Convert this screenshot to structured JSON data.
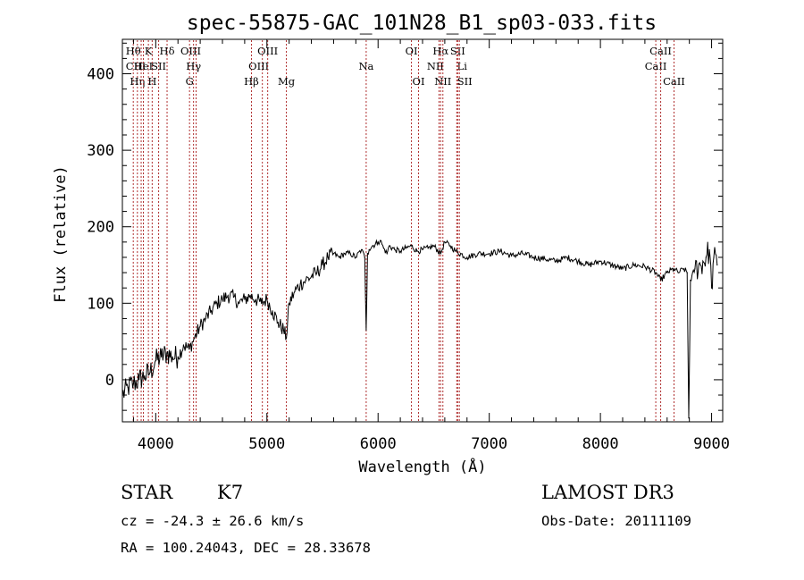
{
  "chart_data": {
    "type": "line",
    "title": "spec-55875-GAC_101N28_B1_sp03-033.fits",
    "xlabel": "Wavelength (Å)",
    "ylabel": "Flux (relative)",
    "xlim": [
      3700,
      9100
    ],
    "ylim": [
      -55,
      445
    ],
    "x_ticks": [
      4000,
      5000,
      6000,
      7000,
      8000,
      9000
    ],
    "x_tick_labels": [
      "4000",
      "5000",
      "6000",
      "7000",
      "8000",
      "9000"
    ],
    "y_ticks": [
      0,
      100,
      200,
      300,
      400
    ],
    "y_tick_labels": [
      "0",
      "100",
      "200",
      "300",
      "400"
    ],
    "line_color": "#000000",
    "marker_color": "#b03030",
    "series": [
      {
        "name": "flux",
        "x": [
          3700,
          3750,
          3800,
          3850,
          3900,
          3950,
          4000,
          4050,
          4100,
          4150,
          4200,
          4250,
          4300,
          4350,
          4400,
          4450,
          4500,
          4550,
          4600,
          4650,
          4700,
          4750,
          4800,
          4850,
          4900,
          4950,
          5000,
          5050,
          5100,
          5150,
          5175,
          5200,
          5250,
          5300,
          5350,
          5400,
          5450,
          5500,
          5550,
          5600,
          5650,
          5700,
          5750,
          5800,
          5850,
          5880,
          5893,
          5905,
          5920,
          5950,
          6000,
          6020,
          6050,
          6080,
          6100,
          6150,
          6200,
          6250,
          6300,
          6350,
          6400,
          6450,
          6500,
          6563,
          6600,
          6650,
          6700,
          6800,
          6900,
          7000,
          7100,
          7200,
          7300,
          7400,
          7500,
          7600,
          7700,
          7800,
          7900,
          8000,
          8100,
          8200,
          8300,
          8400,
          8498,
          8542,
          8600,
          8662,
          8700,
          8750,
          8780,
          8795,
          8810,
          8850,
          8900,
          8950,
          8980,
          9000,
          9020,
          9050
        ],
        "y": [
          -20,
          -10,
          -5,
          0,
          5,
          10,
          25,
          30,
          35,
          30,
          30,
          45,
          40,
          55,
          70,
          80,
          90,
          100,
          105,
          110,
          108,
          100,
          105,
          110,
          105,
          100,
          105,
          90,
          75,
          65,
          55,
          100,
          115,
          125,
          130,
          135,
          140,
          150,
          160,
          165,
          160,
          165,
          165,
          160,
          170,
          160,
          65,
          165,
          170,
          175,
          180,
          182,
          172,
          165,
          175,
          170,
          168,
          172,
          175,
          168,
          170,
          172,
          175,
          165,
          180,
          175,
          168,
          160,
          165,
          165,
          168,
          162,
          165,
          160,
          158,
          155,
          160,
          155,
          150,
          155,
          150,
          145,
          150,
          148,
          140,
          130,
          140,
          145,
          140,
          145,
          140,
          -50,
          130,
          145,
          150,
          160,
          170,
          120,
          160,
          150
        ]
      }
    ],
    "line_markers": [
      {
        "wavelength": 3798,
        "label": "Hθ",
        "row": 0,
        "dx": 0
      },
      {
        "wavelength": 3835,
        "label": "Hη",
        "row": 2,
        "dx": 0
      },
      {
        "wavelength": 3869,
        "label": "CIII",
        "row": 1,
        "dx": -6
      },
      {
        "wavelength": 3889,
        "label": "HeI",
        "row": 1,
        "dx": 0
      },
      {
        "wavelength": 3934,
        "label": "K",
        "row": 0,
        "dx": 0
      },
      {
        "wavelength": 3968,
        "label": "H",
        "row": 2,
        "dx": 0
      },
      {
        "wavelength": 4026,
        "label": "SII",
        "row": 1,
        "dx": 0
      },
      {
        "wavelength": 4102,
        "label": "Hδ",
        "row": 0,
        "dx": 0
      },
      {
        "wavelength": 4304,
        "label": "G",
        "row": 2,
        "dx": 0
      },
      {
        "wavelength": 4340,
        "label": "Hγ",
        "row": 1,
        "dx": 0
      },
      {
        "wavelength": 4363,
        "label": "OIII",
        "row": 0,
        "dx": -6
      },
      {
        "wavelength": 4861,
        "label": "Hβ",
        "row": 2,
        "dx": 0
      },
      {
        "wavelength": 4959,
        "label": "OIII",
        "row": 1,
        "dx": -4
      },
      {
        "wavelength": 5007,
        "label": "OIII",
        "row": 0,
        "dx": 0
      },
      {
        "wavelength": 5175,
        "label": "Mg",
        "row": 2,
        "dx": 0
      },
      {
        "wavelength": 5893,
        "label": "Na",
        "row": 1,
        "dx": 0
      },
      {
        "wavelength": 6300,
        "label": "OI",
        "row": 0,
        "dx": 0
      },
      {
        "wavelength": 6364,
        "label": "OI",
        "row": 2,
        "dx": 0
      },
      {
        "wavelength": 6548,
        "label": "NII",
        "row": 1,
        "dx": -4
      },
      {
        "wavelength": 6563,
        "label": "Hα",
        "row": 0,
        "dx": 0
      },
      {
        "wavelength": 6583,
        "label": "NII",
        "row": 2,
        "dx": 0
      },
      {
        "wavelength": 6708,
        "label": "Li",
        "row": 1,
        "dx": 6
      },
      {
        "wavelength": 6716,
        "label": "SII",
        "row": 0,
        "dx": 0
      },
      {
        "wavelength": 6731,
        "label": "SII",
        "row": 2,
        "dx": 6
      },
      {
        "wavelength": 8498,
        "label": "CaII",
        "row": 1,
        "dx": 0
      },
      {
        "wavelength": 8542,
        "label": "CaII",
        "row": 0,
        "dx": 0
      },
      {
        "wavelength": 8662,
        "label": "CaII",
        "row": 2,
        "dx": 0
      }
    ]
  },
  "info": {
    "object_class": "STAR",
    "subclass": "K7",
    "survey": "LAMOST DR3",
    "redshift_line": "cz = -24.3 ± 26.6 km/s",
    "obs_date": "Obs-Date: 20111109",
    "coords": "RA = 100.24043, DEC =  28.33678"
  }
}
